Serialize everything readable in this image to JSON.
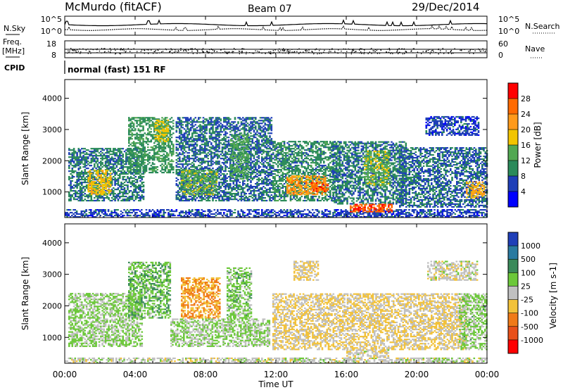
{
  "header": {
    "station": "McMurdo (fitACF)",
    "beam": "Beam 07",
    "date": "29/Dec/2014"
  },
  "noise_panel": {
    "left_label": "N.Sky",
    "right_label": "N.Search",
    "left_ticks": [
      "10^5",
      "10^0"
    ],
    "right_ticks": [
      "10^5",
      "10^0"
    ]
  },
  "freq_panel": {
    "left_label_top": "Freq.",
    "left_label_unit": "[MHz]",
    "left_ticks": [
      "18",
      "8"
    ],
    "right_label": "Nave",
    "right_ticks": [
      "60",
      "0"
    ]
  },
  "cpid_panel": {
    "label": "CPID",
    "mode": "normal (fast) 151 RF"
  },
  "x_axis": {
    "label": "Time UT",
    "ticks": [
      "00:00",
      "04:00",
      "08:00",
      "12:00",
      "16:00",
      "20:00",
      "00:00"
    ]
  },
  "chart_data": [
    {
      "type": "heatmap",
      "name": "Power",
      "ylabel": "Slant Range [km]",
      "xlabel": "",
      "x_range_hours": [
        0,
        24
      ],
      "ylim": [
        180,
        4600
      ],
      "y_ticks": [
        "1000",
        "2000",
        "3000",
        "4000"
      ],
      "colorbar_label": "Power [dB]",
      "colorbar_ticks": [
        "28",
        "24",
        "20",
        "16",
        "12",
        "8",
        "4"
      ],
      "colorbar_colors": [
        "#ff0000",
        "#ff6a00",
        "#ff9a1a",
        "#f2c400",
        "#52a852",
        "#2a8a5a",
        "#1f3fb8",
        "#0000ff"
      ],
      "value_range": [
        0,
        32
      ],
      "regions": [
        {
          "t0": 0.0,
          "t1": 24.0,
          "r0": 180,
          "r1": 420,
          "v": 6
        },
        {
          "t0": 0.2,
          "t1": 4.5,
          "r0": 700,
          "r1": 2400,
          "v": 9
        },
        {
          "t0": 1.3,
          "t1": 2.6,
          "r0": 900,
          "r1": 1700,
          "v": 18
        },
        {
          "t0": 3.6,
          "t1": 6.2,
          "r0": 1600,
          "r1": 3400,
          "v": 11
        },
        {
          "t0": 5.1,
          "t1": 5.9,
          "r0": 2600,
          "r1": 3300,
          "v": 17
        },
        {
          "t0": 6.3,
          "t1": 11.7,
          "r0": 700,
          "r1": 3400,
          "v": 8
        },
        {
          "t0": 6.6,
          "t1": 8.6,
          "r0": 900,
          "r1": 1700,
          "v": 14
        },
        {
          "t0": 9.4,
          "t1": 10.4,
          "r0": 1400,
          "r1": 2800,
          "v": 13
        },
        {
          "t0": 11.8,
          "t1": 15.6,
          "r0": 700,
          "r1": 2600,
          "v": 10
        },
        {
          "t0": 12.6,
          "t1": 14.8,
          "r0": 900,
          "r1": 1500,
          "v": 22
        },
        {
          "t0": 14.0,
          "t1": 14.9,
          "r0": 1000,
          "r1": 1300,
          "v": 27
        },
        {
          "t0": 15.2,
          "t1": 19.4,
          "r0": 600,
          "r1": 2600,
          "v": 9
        },
        {
          "t0": 16.2,
          "t1": 18.6,
          "r0": 350,
          "r1": 620,
          "v": 27
        },
        {
          "t0": 17.0,
          "t1": 18.4,
          "r0": 1200,
          "r1": 2300,
          "v": 15
        },
        {
          "t0": 19.0,
          "t1": 24.0,
          "r0": 500,
          "r1": 2400,
          "v": 8
        },
        {
          "t0": 22.8,
          "t1": 23.8,
          "r0": 800,
          "r1": 1300,
          "v": 21
        },
        {
          "t0": 20.5,
          "t1": 23.5,
          "r0": 2800,
          "r1": 3400,
          "v": 6
        }
      ]
    },
    {
      "type": "heatmap",
      "name": "Velocity",
      "ylabel": "Slant Range [km]",
      "xlabel": "Time UT",
      "x_range_hours": [
        0,
        24
      ],
      "ylim": [
        180,
        4600
      ],
      "y_ticks": [
        "1000",
        "2000",
        "3000",
        "4000"
      ],
      "colorbar_label": "Velocity [m s-1]",
      "colorbar_ticks": [
        "1000",
        "500",
        "100",
        "25",
        "-25",
        "-100",
        "-500",
        "-1000"
      ],
      "colorbar_colors": [
        "#1f3fb8",
        "#2a7aa0",
        "#3a8a5a",
        "#6cc83a",
        "#c0c0c0",
        "#f2c23a",
        "#f07a18",
        "#e8501a",
        "#ff0000"
      ],
      "value_range": [
        -1200,
        1200
      ],
      "regions": [
        {
          "t0": 0.0,
          "t1": 24.0,
          "r0": 180,
          "r1": 360,
          "v": 10
        },
        {
          "t0": 0.2,
          "t1": 4.4,
          "r0": 700,
          "r1": 2400,
          "v": 180
        },
        {
          "t0": 3.6,
          "t1": 6.0,
          "r0": 1600,
          "r1": 3400,
          "v": 300
        },
        {
          "t0": 6.6,
          "t1": 8.8,
          "r0": 1600,
          "r1": 2900,
          "v": -400
        },
        {
          "t0": 6.0,
          "t1": 11.6,
          "r0": 700,
          "r1": 1600,
          "v": 150
        },
        {
          "t0": 9.2,
          "t1": 10.6,
          "r0": 1600,
          "r1": 3200,
          "v": 250
        },
        {
          "t0": 11.8,
          "t1": 22.8,
          "r0": 600,
          "r1": 2400,
          "v": -150
        },
        {
          "t0": 13.0,
          "t1": 14.4,
          "r0": 2800,
          "r1": 3400,
          "v": -160
        },
        {
          "t0": 16.0,
          "t1": 18.4,
          "r0": 350,
          "r1": 620,
          "v": -60
        },
        {
          "t0": 22.4,
          "t1": 24.0,
          "r0": 600,
          "r1": 2400,
          "v": 200
        },
        {
          "t0": 20.6,
          "t1": 23.4,
          "r0": 2800,
          "r1": 3400,
          "v": -20
        }
      ]
    }
  ]
}
